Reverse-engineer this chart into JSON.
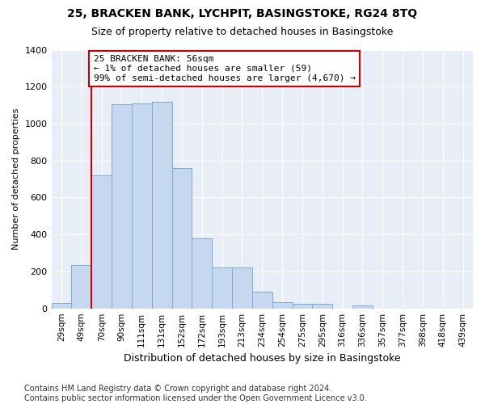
{
  "title": "25, BRACKEN BANK, LYCHPIT, BASINGSTOKE, RG24 8TQ",
  "subtitle": "Size of property relative to detached houses in Basingstoke",
  "xlabel": "Distribution of detached houses by size in Basingstoke",
  "ylabel": "Number of detached properties",
  "categories": [
    "29sqm",
    "49sqm",
    "70sqm",
    "90sqm",
    "111sqm",
    "131sqm",
    "152sqm",
    "172sqm",
    "193sqm",
    "213sqm",
    "234sqm",
    "254sqm",
    "275sqm",
    "295sqm",
    "316sqm",
    "336sqm",
    "357sqm",
    "377sqm",
    "398sqm",
    "418sqm",
    "439sqm"
  ],
  "values": [
    30,
    235,
    720,
    1105,
    1110,
    1120,
    760,
    380,
    220,
    220,
    90,
    32,
    27,
    25,
    0,
    14,
    0,
    0,
    0,
    0,
    0
  ],
  "bar_color": "#c5d8ef",
  "bar_edge_color": "#7aadd4",
  "vline_x": 1.5,
  "vline_color": "#cc0000",
  "annotation_text": "25 BRACKEN BANK: 56sqm\n← 1% of detached houses are smaller (59)\n99% of semi-detached houses are larger (4,670) →",
  "annotation_box_color": "#ffffff",
  "annotation_box_edge": "#cc0000",
  "ylim": [
    0,
    1400
  ],
  "yticks": [
    0,
    200,
    400,
    600,
    800,
    1000,
    1200,
    1400
  ],
  "bg_color": "#ffffff",
  "plot_bg_color": "#e8eef7",
  "footer": "Contains HM Land Registry data © Crown copyright and database right 2024.\nContains public sector information licensed under the Open Government Licence v3.0.",
  "title_fontsize": 10,
  "subtitle_fontsize": 9,
  "footer_fontsize": 7,
  "annot_fontsize": 8
}
